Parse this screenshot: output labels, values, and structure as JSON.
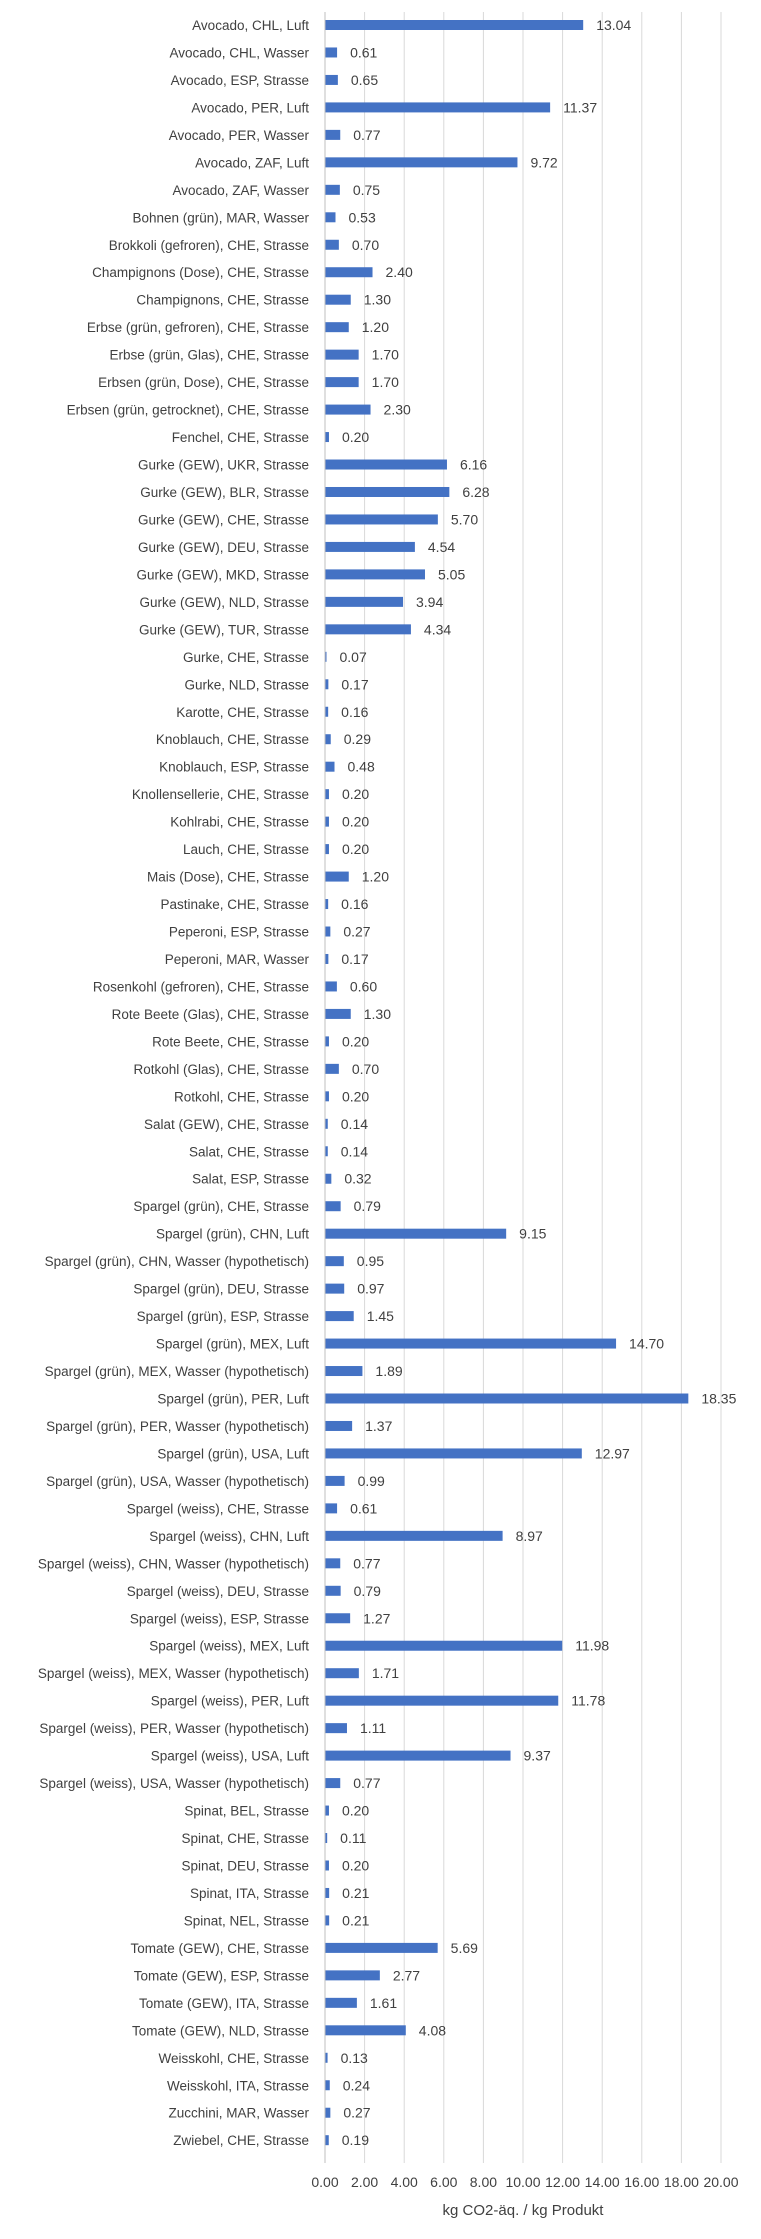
{
  "chart_data": {
    "type": "bar",
    "orientation": "horizontal",
    "title": "",
    "xlabel": "kg CO2-äq. / kg Produkt",
    "ylabel": "",
    "xlim": [
      0,
      20
    ],
    "xticks": [
      "0.00",
      "2.00",
      "4.00",
      "6.00",
      "8.00",
      "10.00",
      "12.00",
      "14.00",
      "16.00",
      "18.00",
      "20.00"
    ],
    "grid": true,
    "bar_color": "#4472c4",
    "categories": [
      "Avocado, CHL, Luft",
      "Avocado, CHL, Wasser",
      "Avocado, ESP, Strasse",
      "Avocado, PER, Luft",
      "Avocado, PER, Wasser",
      "Avocado, ZAF, Luft",
      "Avocado, ZAF, Wasser",
      "Bohnen (grün), MAR, Wasser",
      "Brokkoli (gefroren), CHE, Strasse",
      "Champignons (Dose), CHE, Strasse",
      "Champignons, CHE, Strasse",
      "Erbse (grün, gefroren), CHE, Strasse",
      "Erbse (grün, Glas), CHE, Strasse",
      "Erbsen (grün, Dose), CHE, Strasse",
      "Erbsen (grün, getrocknet), CHE, Strasse",
      "Fenchel, CHE, Strasse",
      "Gurke  (GEW), UKR, Strasse",
      "Gurke (GEW), BLR, Strasse",
      "Gurke (GEW), CHE, Strasse",
      "Gurke (GEW), DEU, Strasse",
      "Gurke (GEW), MKD, Strasse",
      "Gurke (GEW), NLD, Strasse",
      "Gurke (GEW), TUR, Strasse",
      "Gurke, CHE, Strasse",
      "Gurke, NLD, Strasse",
      "Karotte, CHE, Strasse",
      "Knoblauch, CHE, Strasse",
      "Knoblauch, ESP, Strasse",
      "Knollensellerie, CHE, Strasse",
      "Kohlrabi, CHE, Strasse",
      "Lauch, CHE, Strasse",
      "Mais (Dose), CHE, Strasse",
      "Pastinake, CHE, Strasse",
      "Peperoni, ESP, Strasse",
      "Peperoni, MAR, Wasser",
      "Rosenkohl (gefroren), CHE, Strasse",
      "Rote Beete (Glas), CHE, Strasse",
      "Rote Beete, CHE, Strasse",
      "Rotkohl (Glas), CHE, Strasse",
      "Rotkohl, CHE, Strasse",
      "Salat (GEW), CHE, Strasse",
      "Salat, CHE, Strasse",
      "Salat, ESP, Strasse",
      "Spargel (grün), CHE, Strasse",
      "Spargel (grün), CHN, Luft",
      "Spargel (grün), CHN, Wasser (hypothetisch)",
      "Spargel (grün), DEU, Strasse",
      "Spargel (grün), ESP, Strasse",
      "Spargel (grün), MEX, Luft",
      "Spargel (grün), MEX, Wasser (hypothetisch)",
      "Spargel (grün), PER, Luft",
      "Spargel (grün), PER, Wasser (hypothetisch)",
      "Spargel (grün), USA, Luft",
      "Spargel (grün), USA, Wasser (hypothetisch)",
      "Spargel (weiss), CHE, Strasse",
      "Spargel (weiss), CHN, Luft",
      "Spargel (weiss), CHN, Wasser (hypothetisch)",
      "Spargel (weiss), DEU, Strasse",
      "Spargel (weiss), ESP, Strasse",
      "Spargel (weiss), MEX, Luft",
      "Spargel (weiss), MEX, Wasser (hypothetisch)",
      "Spargel (weiss), PER, Luft",
      "Spargel (weiss), PER, Wasser (hypothetisch)",
      "Spargel (weiss), USA, Luft",
      "Spargel (weiss), USA, Wasser (hypothetisch)",
      "Spinat, BEL, Strasse",
      "Spinat, CHE, Strasse",
      "Spinat, DEU, Strasse",
      "Spinat, ITA, Strasse",
      "Spinat, NEL, Strasse",
      "Tomate (GEW), CHE, Strasse",
      "Tomate (GEW), ESP, Strasse",
      "Tomate (GEW), ITA, Strasse",
      "Tomate (GEW), NLD, Strasse",
      "Weisskohl, CHE, Strasse",
      "Weisskohl, ITA, Strasse",
      "Zucchini, MAR, Wasser",
      "Zwiebel, CHE, Strasse"
    ],
    "values": [
      13.04,
      0.61,
      0.65,
      11.37,
      0.77,
      9.72,
      0.75,
      0.53,
      0.7,
      2.4,
      1.3,
      1.2,
      1.7,
      1.7,
      2.3,
      0.2,
      6.16,
      6.28,
      5.7,
      4.54,
      5.05,
      3.94,
      4.34,
      0.07,
      0.17,
      0.16,
      0.29,
      0.48,
      0.2,
      0.2,
      0.2,
      1.2,
      0.16,
      0.27,
      0.17,
      0.6,
      1.3,
      0.2,
      0.7,
      0.2,
      0.14,
      0.14,
      0.32,
      0.79,
      9.15,
      0.95,
      0.97,
      1.45,
      14.7,
      1.89,
      18.35,
      1.37,
      12.97,
      0.99,
      0.61,
      8.97,
      0.77,
      0.79,
      1.27,
      11.98,
      1.71,
      11.78,
      1.11,
      9.37,
      0.77,
      0.2,
      0.11,
      0.2,
      0.21,
      0.21,
      5.69,
      2.77,
      1.61,
      4.08,
      0.13,
      0.24,
      0.27,
      0.19
    ],
    "value_labels": [
      "13.04",
      "0.61",
      "0.65",
      "11.37",
      "0.77",
      "9.72",
      "0.75",
      "0.53",
      "0.70",
      "2.40",
      "1.30",
      "1.20",
      "1.70",
      "1.70",
      "2.30",
      "0.20",
      "6.16",
      "6.28",
      "5.70",
      "4.54",
      "5.05",
      "3.94",
      "4.34",
      "0.07",
      "0.17",
      "0.16",
      "0.29",
      "0.48",
      "0.20",
      "0.20",
      "0.20",
      "1.20",
      "0.16",
      "0.27",
      "0.17",
      "0.60",
      "1.30",
      "0.20",
      "0.70",
      "0.20",
      "0.14",
      "0.14",
      "0.32",
      "0.79",
      "9.15",
      "0.95",
      "0.97",
      "1.45",
      "14.70",
      "1.89",
      "18.35",
      "1.37",
      "12.97",
      "0.99",
      "0.61",
      "8.97",
      "0.77",
      "0.79",
      "1.27",
      "11.98",
      "1.71",
      "11.78",
      "1.11",
      "9.37",
      "0.77",
      "0.20",
      "0.11",
      "0.20",
      "0.21",
      "0.21",
      "5.69",
      "2.77",
      "1.61",
      "4.08",
      "0.13",
      "0.24",
      "0.27",
      "0.19"
    ]
  }
}
